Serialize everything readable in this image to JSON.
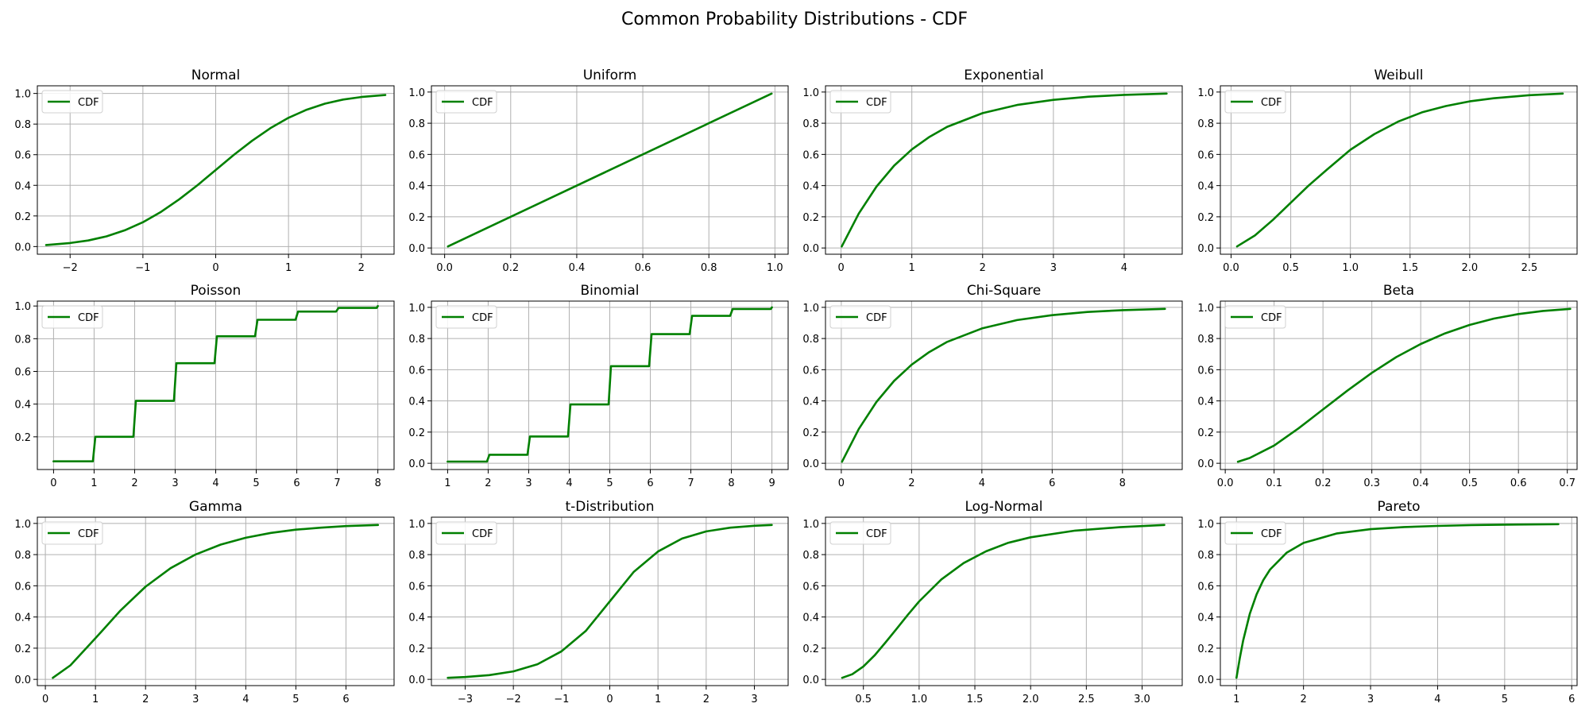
{
  "figure": {
    "title": "Common Probability Distributions - CDF",
    "line_color": "#008000",
    "grid": true,
    "legend_position": "upper-left"
  },
  "chart_data": [
    {
      "type": "line",
      "title": "Normal",
      "grid": true,
      "legend": "upper-left",
      "xlim": [
        -2.45,
        2.45
      ],
      "ylim": [
        -0.05,
        1.05
      ],
      "xticks": [
        -2,
        -1,
        0,
        1,
        2
      ],
      "xtick_labels": [
        "−2",
        "−1",
        "0",
        "1",
        "2"
      ],
      "yticks": [
        0,
        0.2,
        0.4,
        0.6,
        0.8,
        1.0
      ],
      "ytick_labels": [
        "0.0",
        "0.2",
        "0.4",
        "0.6",
        "0.8",
        "1.0"
      ],
      "series": [
        {
          "name": "CDF",
          "x": [
            -2.33,
            -2.0,
            -1.75,
            -1.5,
            -1.25,
            -1.0,
            -0.75,
            -0.5,
            -0.25,
            0.0,
            0.25,
            0.5,
            0.75,
            1.0,
            1.25,
            1.5,
            1.75,
            2.0,
            2.33
          ],
          "y": [
            0.01,
            0.023,
            0.04,
            0.067,
            0.106,
            0.159,
            0.227,
            0.309,
            0.401,
            0.5,
            0.599,
            0.691,
            0.773,
            0.841,
            0.894,
            0.933,
            0.96,
            0.977,
            0.99
          ]
        }
      ]
    },
    {
      "type": "line",
      "title": "Uniform",
      "grid": true,
      "legend": "upper-left",
      "xlim": [
        -0.04,
        1.04
      ],
      "ylim": [
        -0.04,
        1.04
      ],
      "xticks": [
        0,
        0.2,
        0.4,
        0.6,
        0.8,
        1.0
      ],
      "xtick_labels": [
        "0.0",
        "0.2",
        "0.4",
        "0.6",
        "0.8",
        "1.0"
      ],
      "yticks": [
        0,
        0.2,
        0.4,
        0.6,
        0.8,
        1.0
      ],
      "ytick_labels": [
        "0.0",
        "0.2",
        "0.4",
        "0.6",
        "0.8",
        "1.0"
      ],
      "series": [
        {
          "name": "CDF",
          "x": [
            0.01,
            0.99
          ],
          "y": [
            0.01,
            0.99
          ]
        }
      ]
    },
    {
      "type": "line",
      "title": "Exponential",
      "grid": true,
      "legend": "upper-left",
      "xlim": [
        -0.22,
        4.82
      ],
      "ylim": [
        -0.04,
        1.04
      ],
      "xticks": [
        0,
        1,
        2,
        3,
        4
      ],
      "xtick_labels": [
        "0",
        "1",
        "2",
        "3",
        "4"
      ],
      "yticks": [
        0,
        0.2,
        0.4,
        0.6,
        0.8,
        1.0
      ],
      "ytick_labels": [
        "0.0",
        "0.2",
        "0.4",
        "0.6",
        "0.8",
        "1.0"
      ],
      "series": [
        {
          "name": "CDF",
          "x": [
            0.01,
            0.25,
            0.5,
            0.75,
            1.0,
            1.25,
            1.5,
            2.0,
            2.5,
            3.0,
            3.5,
            4.0,
            4.6
          ],
          "y": [
            0.01,
            0.221,
            0.393,
            0.528,
            0.632,
            0.713,
            0.777,
            0.865,
            0.918,
            0.95,
            0.97,
            0.982,
            0.99
          ]
        }
      ]
    },
    {
      "type": "line",
      "title": "Weibull",
      "grid": true,
      "legend": "upper-left",
      "xlim": [
        -0.09,
        2.9
      ],
      "ylim": [
        -0.04,
        1.04
      ],
      "xticks": [
        0,
        0.5,
        1.0,
        1.5,
        2.0,
        2.5
      ],
      "xtick_labels": [
        "0.0",
        "0.5",
        "1.0",
        "1.5",
        "2.0",
        "2.5"
      ],
      "yticks": [
        0,
        0.2,
        0.4,
        0.6,
        0.8,
        1.0
      ],
      "ytick_labels": [
        "0.0",
        "0.2",
        "0.4",
        "0.6",
        "0.8",
        "1.0"
      ],
      "series": [
        {
          "name": "CDF",
          "x": [
            0.05,
            0.2,
            0.35,
            0.5,
            0.65,
            0.8,
            1.0,
            1.2,
            1.4,
            1.6,
            1.8,
            2.0,
            2.2,
            2.5,
            2.78
          ],
          "y": [
            0.01,
            0.08,
            0.18,
            0.29,
            0.4,
            0.5,
            0.63,
            0.73,
            0.81,
            0.87,
            0.91,
            0.94,
            0.96,
            0.98,
            0.99
          ]
        }
      ]
    },
    {
      "type": "line",
      "title": "Poisson",
      "grid": true,
      "legend": "upper-left",
      "xlim": [
        -0.4,
        8.4
      ],
      "ylim": [
        0.0,
        1.03
      ],
      "xticks": [
        0,
        1,
        2,
        3,
        4,
        5,
        6,
        7,
        8
      ],
      "xtick_labels": [
        "0",
        "1",
        "2",
        "3",
        "4",
        "5",
        "6",
        "7",
        "8"
      ],
      "yticks": [
        0.2,
        0.4,
        0.6,
        0.8,
        1.0
      ],
      "ytick_labels": [
        "0.2",
        "0.4",
        "0.6",
        "0.8",
        "1.0"
      ],
      "series": [
        {
          "name": "CDF",
          "x": [
            0,
            0.97,
            1.03,
            1.97,
            2.03,
            2.97,
            3.03,
            3.97,
            4.03,
            4.97,
            5.03,
            5.97,
            6.03,
            6.97,
            7.03,
            7.97,
            8.0
          ],
          "y": [
            0.05,
            0.05,
            0.2,
            0.2,
            0.42,
            0.42,
            0.65,
            0.65,
            0.815,
            0.815,
            0.916,
            0.916,
            0.966,
            0.966,
            0.988,
            0.988,
            1.0
          ]
        }
      ]
    },
    {
      "type": "line",
      "title": "Binomial",
      "grid": true,
      "legend": "upper-left",
      "xlim": [
        0.6,
        9.4
      ],
      "ylim": [
        -0.04,
        1.04
      ],
      "xticks": [
        1,
        2,
        3,
        4,
        5,
        6,
        7,
        8,
        9
      ],
      "xtick_labels": [
        "1",
        "2",
        "3",
        "4",
        "5",
        "6",
        "7",
        "8",
        "9"
      ],
      "yticks": [
        0,
        0.2,
        0.4,
        0.6,
        0.8,
        1.0
      ],
      "ytick_labels": [
        "0.0",
        "0.2",
        "0.4",
        "0.6",
        "0.8",
        "1.0"
      ],
      "series": [
        {
          "name": "CDF",
          "x": [
            1,
            1.97,
            2.03,
            2.97,
            3.03,
            3.97,
            4.03,
            4.97,
            5.03,
            5.97,
            6.03,
            6.97,
            7.03,
            7.97,
            8.03,
            8.97,
            9.0
          ],
          "y": [
            0.011,
            0.011,
            0.055,
            0.055,
            0.172,
            0.172,
            0.377,
            0.377,
            0.623,
            0.623,
            0.828,
            0.828,
            0.945,
            0.945,
            0.989,
            0.989,
            1.0
          ]
        }
      ]
    },
    {
      "type": "line",
      "title": "Chi-Square",
      "grid": true,
      "legend": "upper-left",
      "xlim": [
        -0.45,
        9.7
      ],
      "ylim": [
        -0.04,
        1.04
      ],
      "xticks": [
        0,
        2,
        4,
        6,
        8
      ],
      "xtick_labels": [
        "0",
        "2",
        "4",
        "6",
        "8"
      ],
      "yticks": [
        0,
        0.2,
        0.4,
        0.6,
        0.8,
        1.0
      ],
      "ytick_labels": [
        "0.0",
        "0.2",
        "0.4",
        "0.6",
        "0.8",
        "1.0"
      ],
      "series": [
        {
          "name": "CDF",
          "x": [
            0.02,
            0.5,
            1.0,
            1.5,
            2.0,
            2.5,
            3.0,
            4.0,
            5.0,
            6.0,
            7.0,
            8.0,
            9.21
          ],
          "y": [
            0.01,
            0.221,
            0.393,
            0.528,
            0.632,
            0.713,
            0.777,
            0.865,
            0.918,
            0.95,
            0.97,
            0.982,
            0.99
          ]
        }
      ]
    },
    {
      "type": "line",
      "title": "Beta",
      "grid": true,
      "legend": "upper-left",
      "xlim": [
        -0.01,
        0.72
      ],
      "ylim": [
        -0.04,
        1.04
      ],
      "xticks": [
        0,
        0.1,
        0.2,
        0.3,
        0.4,
        0.5,
        0.6,
        0.7
      ],
      "xtick_labels": [
        "0.0",
        "0.1",
        "0.2",
        "0.3",
        "0.4",
        "0.5",
        "0.6",
        "0.7"
      ],
      "yticks": [
        0,
        0.2,
        0.4,
        0.6,
        0.8,
        1.0
      ],
      "ytick_labels": [
        "0.0",
        "0.2",
        "0.4",
        "0.6",
        "0.8",
        "1.0"
      ],
      "series": [
        {
          "name": "CDF",
          "x": [
            0.026,
            0.05,
            0.1,
            0.15,
            0.2,
            0.25,
            0.3,
            0.35,
            0.4,
            0.45,
            0.5,
            0.55,
            0.6,
            0.65,
            0.706
          ],
          "y": [
            0.01,
            0.034,
            0.114,
            0.224,
            0.345,
            0.466,
            0.58,
            0.681,
            0.765,
            0.833,
            0.887,
            0.928,
            0.957,
            0.977,
            0.99
          ]
        }
      ]
    },
    {
      "type": "line",
      "title": "Gamma",
      "grid": true,
      "legend": "upper-left",
      "xlim": [
        -0.16,
        6.96
      ],
      "ylim": [
        -0.04,
        1.04
      ],
      "xticks": [
        0,
        1,
        2,
        3,
        4,
        5,
        6
      ],
      "xtick_labels": [
        "0",
        "1",
        "2",
        "3",
        "4",
        "5",
        "6"
      ],
      "yticks": [
        0,
        0.2,
        0.4,
        0.6,
        0.8,
        1.0
      ],
      "ytick_labels": [
        "0.0",
        "0.2",
        "0.4",
        "0.6",
        "0.8",
        "1.0"
      ],
      "series": [
        {
          "name": "CDF",
          "x": [
            0.15,
            0.5,
            1.0,
            1.5,
            2.0,
            2.5,
            3.0,
            3.5,
            4.0,
            4.5,
            5.0,
            5.5,
            6.0,
            6.64
          ],
          "y": [
            0.01,
            0.09,
            0.264,
            0.442,
            0.594,
            0.713,
            0.801,
            0.864,
            0.908,
            0.939,
            0.96,
            0.973,
            0.983,
            0.99
          ]
        }
      ]
    },
    {
      "type": "line",
      "title": "t-Distribution",
      "grid": true,
      "legend": "upper-left",
      "xlim": [
        -3.7,
        3.7
      ],
      "ylim": [
        -0.04,
        1.04
      ],
      "xticks": [
        -3,
        -2,
        -1,
        0,
        1,
        2,
        3
      ],
      "xtick_labels": [
        "−3",
        "−2",
        "−1",
        "0",
        "1",
        "2",
        "3"
      ],
      "yticks": [
        0,
        0.2,
        0.4,
        0.6,
        0.8,
        1.0
      ],
      "ytick_labels": [
        "0.0",
        "0.2",
        "0.4",
        "0.6",
        "0.8",
        "1.0"
      ],
      "series": [
        {
          "name": "CDF",
          "x": [
            -3.36,
            -3.0,
            -2.5,
            -2.0,
            -1.5,
            -1.0,
            -0.5,
            0.0,
            0.5,
            1.0,
            1.5,
            2.0,
            2.5,
            3.0,
            3.36
          ],
          "y": [
            0.01,
            0.015,
            0.027,
            0.051,
            0.097,
            0.18,
            0.31,
            0.5,
            0.69,
            0.82,
            0.903,
            0.949,
            0.973,
            0.985,
            0.99
          ]
        }
      ]
    },
    {
      "type": "line",
      "title": "Log-Normal",
      "grid": true,
      "legend": "upper-left",
      "xlim": [
        0.16,
        3.36
      ],
      "ylim": [
        -0.04,
        1.04
      ],
      "xticks": [
        0.5,
        1.0,
        1.5,
        2.0,
        2.5,
        3.0
      ],
      "xtick_labels": [
        "0.5",
        "1.0",
        "1.5",
        "2.0",
        "2.5",
        "3.0"
      ],
      "yticks": [
        0,
        0.2,
        0.4,
        0.6,
        0.8,
        1.0
      ],
      "ytick_labels": [
        "0.0",
        "0.2",
        "0.4",
        "0.6",
        "0.8",
        "1.0"
      ],
      "series": [
        {
          "name": "CDF",
          "x": [
            0.31,
            0.4,
            0.5,
            0.6,
            0.7,
            0.8,
            0.9,
            1.0,
            1.2,
            1.4,
            1.6,
            1.8,
            2.0,
            2.4,
            2.8,
            3.2
          ],
          "y": [
            0.01,
            0.033,
            0.083,
            0.153,
            0.238,
            0.326,
            0.415,
            0.5,
            0.641,
            0.746,
            0.821,
            0.876,
            0.911,
            0.954,
            0.976,
            0.99
          ]
        }
      ]
    },
    {
      "type": "line",
      "title": "Pareto",
      "grid": true,
      "legend": "upper-left",
      "xlim": [
        0.76,
        6.08
      ],
      "ylim": [
        -0.04,
        1.04
      ],
      "xticks": [
        1,
        2,
        3,
        4,
        5,
        6
      ],
      "xtick_labels": [
        "1",
        "2",
        "3",
        "4",
        "5",
        "6"
      ],
      "yticks": [
        0,
        0.2,
        0.4,
        0.6,
        0.8,
        1.0
      ],
      "ytick_labels": [
        "0.0",
        "0.2",
        "0.4",
        "0.6",
        "0.8",
        "1.0"
      ],
      "series": [
        {
          "name": "CDF",
          "x": [
            1.0,
            1.05,
            1.1,
            1.2,
            1.3,
            1.4,
            1.5,
            1.75,
            2.0,
            2.5,
            3.0,
            3.5,
            4.0,
            4.5,
            5.0,
            5.8
          ],
          "y": [
            0.01,
            0.137,
            0.249,
            0.421,
            0.545,
            0.636,
            0.704,
            0.813,
            0.875,
            0.936,
            0.963,
            0.977,
            0.984,
            0.989,
            0.992,
            0.995
          ]
        }
      ]
    }
  ]
}
